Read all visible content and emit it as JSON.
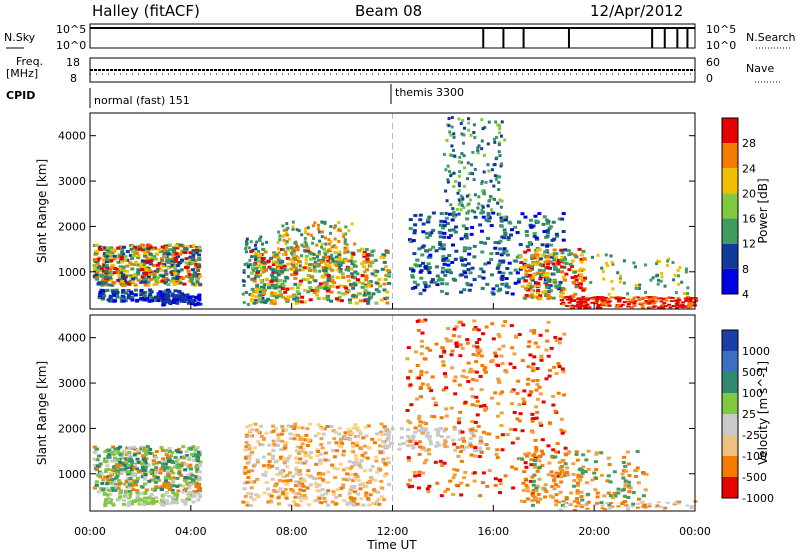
{
  "header": {
    "title": "Halley (fitACF)",
    "beam": "Beam 08",
    "date": "12/Apr/2012"
  },
  "strips": {
    "nsky_label": "N.Sky",
    "nsearch_label": "N.Search",
    "freq_label_1": "Freq.",
    "freq_label_2": "[MHz]",
    "nave_label": "Nave",
    "cpid_label": "CPID",
    "cpid_1": "normal (fast) 151",
    "cpid_2": "themis 3300",
    "noise_ticks_left": [
      "10^5",
      "10^0"
    ],
    "noise_ticks_right": [
      "10^5",
      "10^0"
    ],
    "freq_ticks": [
      "18",
      "8"
    ],
    "nave_ticks": [
      "60",
      "0"
    ]
  },
  "x_axis": {
    "label": "Time UT",
    "ticks": [
      "00:00",
      "04:00",
      "08:00",
      "12:00",
      "16:00",
      "20:00",
      "00:00"
    ]
  },
  "colors": {
    "red": "#e60000",
    "orange": "#f47a00",
    "yellow": "#f0c000",
    "lightgreen": "#7fc83f",
    "green": "#3f9d5f",
    "teal": "#2a7a72",
    "navy": "#123a9a",
    "blue": "#0000e6",
    "grey": "#c9c9c9"
  },
  "chart_data": [
    {
      "type": "heatmap",
      "title": "",
      "xlabel": "",
      "ylabel": "Slant Range [km]",
      "x_range_hours": [
        0,
        24
      ],
      "y_range_km": [
        180,
        4500
      ],
      "y_ticks": [
        "4000",
        "3000",
        "2000",
        "1000"
      ],
      "colorbar": {
        "label": "Power [dB]",
        "ticks": [
          "28",
          "24",
          "20",
          "16",
          "12",
          "8",
          "4"
        ],
        "colors": [
          "#e60000",
          "#f47a00",
          "#f0c000",
          "#7fc83f",
          "#3f9d5f",
          "#123a9a",
          "#0000e6"
        ]
      },
      "regions": [
        {
          "t": [
            0.1,
            4.3
          ],
          "r": [
            300,
            1700
          ],
          "color": "mixed-orange-green"
        },
        {
          "t": [
            6.0,
            7.0
          ],
          "r": [
            250,
            1800
          ],
          "color": "green"
        },
        {
          "t": [
            6.3,
            11.8
          ],
          "r": [
            300,
            2100
          ],
          "color": "mixed-orange-green"
        },
        {
          "t": [
            12.5,
            18.8
          ],
          "r": [
            500,
            4400
          ],
          "color": "green-blue"
        },
        {
          "t": [
            17.0,
            19.6
          ],
          "r": [
            400,
            1500
          ],
          "color": "orange-red"
        },
        {
          "t": [
            18.5,
            24.0
          ],
          "r": [
            200,
            600
          ],
          "color": "red"
        }
      ]
    },
    {
      "type": "heatmap",
      "title": "",
      "xlabel": "Time UT",
      "ylabel": "Slant Range [km]",
      "x_range_hours": [
        0,
        24
      ],
      "y_range_km": [
        180,
        4500
      ],
      "y_ticks": [
        "4000",
        "3000",
        "2000",
        "1000"
      ],
      "colorbar": {
        "label": "Velocity [m s^-1]",
        "ticks": [
          "1000",
          "500",
          "100",
          "25",
          "-25",
          "-100",
          "-500",
          "-1000"
        ],
        "colors": [
          "#1a3fa8",
          "#3f6fbf",
          "#2f8a70",
          "#7fc83f",
          "#c9c9c9",
          "#f0c080",
          "#f47a00",
          "#e60000"
        ]
      },
      "regions": [
        {
          "t": [
            0.1,
            4.3
          ],
          "r": [
            300,
            1600
          ],
          "color": "green-grey"
        },
        {
          "t": [
            6.0,
            11.8
          ],
          "r": [
            300,
            2100
          ],
          "color": "orange"
        },
        {
          "t": [
            12.5,
            18.8
          ],
          "r": [
            500,
            4400
          ],
          "color": "orange-red"
        },
        {
          "t": [
            17.0,
            22.0
          ],
          "r": [
            300,
            1500
          ],
          "color": "orange"
        }
      ]
    }
  ]
}
